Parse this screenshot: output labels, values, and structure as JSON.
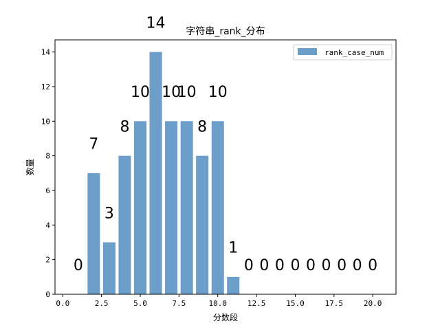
{
  "chart_data": {
    "type": "bar",
    "title": "字符串_rank_分布",
    "xlabel": "分数段",
    "ylabel": "数量",
    "xlim": [
      -0.5,
      21.5
    ],
    "ylim": [
      0,
      14.7
    ],
    "x_ticks": [
      0.0,
      2.5,
      5.0,
      7.5,
      10.0,
      12.5,
      15.0,
      17.5,
      20.0
    ],
    "x_tick_labels": [
      "0.0",
      "2.5",
      "5.0",
      "7.5",
      "10.0",
      "12.5",
      "15.0",
      "17.5",
      "20.0"
    ],
    "y_ticks": [
      0,
      2,
      4,
      6,
      8,
      10,
      12,
      14
    ],
    "y_tick_labels": [
      "0",
      "2",
      "4",
      "6",
      "8",
      "10",
      "12",
      "14"
    ],
    "grid": false,
    "legend_position": "top-right",
    "bar_color": "#6b9ec8",
    "series": [
      {
        "name": "rank_case_num",
        "x": [
          1,
          2,
          3,
          4,
          5,
          6,
          7,
          8,
          9,
          10,
          11,
          12,
          13,
          14,
          15,
          16,
          17,
          18,
          19,
          20
        ],
        "values": [
          0,
          7,
          3,
          8,
          10,
          14,
          10,
          10,
          8,
          10,
          1,
          0,
          0,
          0,
          0,
          0,
          0,
          0,
          0,
          0
        ]
      }
    ],
    "data_labels": [
      "0",
      "7",
      "3",
      "8",
      "10",
      "14",
      "10",
      "10",
      "8",
      "10",
      "1",
      "0",
      "0",
      "0",
      "0",
      "0",
      "0",
      "0",
      "0",
      "0"
    ]
  }
}
